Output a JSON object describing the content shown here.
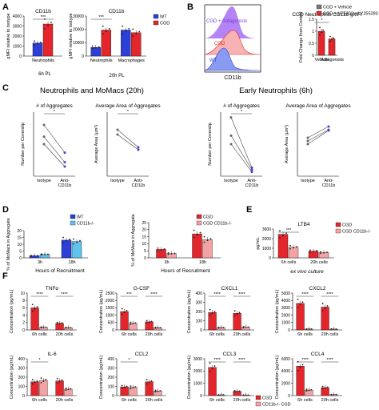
{
  "colors": {
    "red": "#e3262c",
    "blue": "#2c3fd6",
    "lightblue": "#5fc3ec",
    "pink": "#f3a3a3",
    "purple": "#9b59f0",
    "pinkfill": "#f7b3b3",
    "bluefill": "#8a9af0",
    "gray": "#777777",
    "darkred": "#c81e2a"
  },
  "panels": [
    {
      "letter": "A"
    },
    {
      "letter": "B"
    },
    {
      "letter": "C"
    },
    {
      "letter": "D"
    },
    {
      "letter": "E"
    },
    {
      "letter": "F"
    }
  ],
  "legends": {
    "A": [
      {
        "label": "WT",
        "color": "#2c3fd6"
      },
      {
        "label": "CGD",
        "color": "#e3262c"
      }
    ],
    "B": [
      {
        "label": "CGD + Vehicle",
        "color": "#777777"
      },
      {
        "label": "CGD + U75302 + LY255283",
        "color": "#e3262c"
      }
    ],
    "D1": [
      {
        "label": "WT",
        "color": "#2c3fd6"
      },
      {
        "label": "CD11b-/-",
        "color": "#5fc3ec"
      }
    ],
    "D2": [
      {
        "label": "CGD",
        "color": "#e3262c"
      },
      {
        "label": "CGD CD11b-/-",
        "color": "#f3a3a3"
      }
    ],
    "E": [
      {
        "label": "CGD",
        "color": "#e3262c"
      },
      {
        "label": "CGD CD11b-/-",
        "color": "#f3a3a3"
      }
    ],
    "F": [
      {
        "label": "CGD",
        "color": "#e3262c"
      },
      {
        "label": "CD11b-/- CGD",
        "color": "#f3a3a3"
      }
    ]
  },
  "headings": {
    "C_left": "Neutrophils and MoMacs (20h)",
    "C_right": "Early Neutrophils (6h)",
    "B_flow_labels": [
      "CGD + Antagonists",
      "CGD",
      "WT"
    ],
    "B_flow_axis": "CD11b",
    "A_footer_left": "6h PL",
    "A_footer_right": "20h PL",
    "D_footer": "Hours of Recruitment",
    "E_footer": "ex vivo culture"
  },
  "chart_data": [
    {
      "id": "A1",
      "type": "bar",
      "title": "CD11b",
      "ylabel": "gMFI relative to Isotype",
      "ylim": [
        0,
        4000
      ],
      "yticks": [
        0,
        1000,
        2000,
        3000,
        4000
      ],
      "categories": [
        "Neutrophils"
      ],
      "series": [
        {
          "name": "WT",
          "values": [
            1300
          ]
        },
        {
          "name": "CGD",
          "values": [
            3200
          ]
        }
      ],
      "sig": [
        {
          "label": "***"
        }
      ]
    },
    {
      "id": "A2",
      "type": "bar",
      "title": "CD11b",
      "ylabel": "gMFI relative to Isotype",
      "ylim": [
        0,
        30000
      ],
      "yticks": [
        0,
        10000,
        20000,
        30000
      ],
      "categories": [
        "Neutrophils",
        "Macrophages"
      ],
      "series": [
        {
          "name": "WT",
          "values": [
            6500,
            19500
          ]
        },
        {
          "name": "CGD",
          "values": [
            19500,
            17500
          ]
        }
      ],
      "sig": [
        {
          "label": "***"
        }
      ]
    },
    {
      "id": "B",
      "type": "bar",
      "title": "CGD Neutrophils CD11b gMFI",
      "ylabel": "Fold Change from Control",
      "ylim": [
        0,
        1.5
      ],
      "yticks": [
        0.0,
        0.5,
        1.0,
        1.5
      ],
      "categories": [
        "Vehicle",
        "Antagonists"
      ],
      "series": [
        {
          "name": "CGD",
          "values": [
            1.0,
            0.68
          ]
        }
      ],
      "sig": [
        {
          "label": "*"
        }
      ]
    },
    {
      "id": "C1",
      "type": "line",
      "title": "# of Aggregates",
      "ylabel": "Number per Coverslip",
      "categories": [
        "Isotype",
        "Anti-CD11b"
      ],
      "series": [
        {
          "values": [
            48,
            22
          ]
        },
        {
          "values": [
            37,
            13
          ]
        },
        {
          "values": [
            30,
            9
          ]
        }
      ],
      "ylim": [
        0,
        60
      ],
      "sig": [
        {
          "label": "*"
        }
      ]
    },
    {
      "id": "C2",
      "type": "line",
      "title": "Average Area of Aggregates",
      "ylabel": "Average Area (µm²)",
      "categories": [
        "Isotype",
        "Anti-CD11b"
      ],
      "series": [
        {
          "values": [
            58,
            36
          ]
        },
        {
          "values": [
            52,
            33
          ]
        }
      ],
      "ylim": [
        0,
        80
      ],
      "sig": [
        {
          "label": "*"
        }
      ]
    },
    {
      "id": "C3",
      "type": "line",
      "title": "# of Aggregates",
      "ylabel": "Number per Coverslip",
      "categories": [
        "Isotype",
        "Anti-CD11b"
      ],
      "series": [
        {
          "values": [
            55,
            8
          ]
        },
        {
          "values": [
            38,
            6
          ]
        },
        {
          "values": [
            30,
            4
          ]
        }
      ],
      "ylim": [
        0,
        60
      ],
      "sig": [
        {
          "label": "*"
        }
      ]
    },
    {
      "id": "C4",
      "type": "line",
      "title": "Average Area of Aggregates",
      "ylabel": "Average Area (µm²)",
      "categories": [
        "Isotype",
        "Anti-CD11b"
      ],
      "series": [
        {
          "values": [
            48,
            62
          ]
        },
        {
          "values": [
            44,
            58
          ]
        },
        {
          "values": [
            40,
            57
          ]
        }
      ],
      "ylim": [
        0,
        80
      ]
    },
    {
      "id": "D1",
      "type": "bar",
      "ylabel": "% of MoMacs in Aggregate",
      "ylim": [
        0,
        20
      ],
      "yticks": [
        0,
        5,
        10,
        15,
        20
      ],
      "categories": [
        "3h",
        "18h"
      ],
      "series": [
        {
          "name": "WT",
          "values": [
            1.5,
            13
          ]
        },
        {
          "name": "CD11b-/-",
          "values": [
            2.5,
            12
          ]
        }
      ]
    },
    {
      "id": "D2",
      "type": "bar",
      "ylabel": "% of MoMacs in Aggregate",
      "ylim": [
        0,
        25
      ],
      "yticks": [
        0,
        5,
        10,
        15,
        20,
        25
      ],
      "categories": [
        "3h",
        "18h"
      ],
      "series": [
        {
          "name": "CGD",
          "values": [
            6,
            17
          ]
        },
        {
          "name": "CGD CD11b-/-",
          "values": [
            3,
            13
          ]
        }
      ]
    },
    {
      "id": "E",
      "type": "bar",
      "title": "LTB4",
      "ylabel": "pg/mL",
      "ylim": [
        0,
        3000
      ],
      "yticks": [
        0,
        1000,
        2000,
        3000
      ],
      "categories": [
        "6h cells",
        "20h cells"
      ],
      "series": [
        {
          "name": "CGD",
          "values": [
            2450,
            700
          ]
        },
        {
          "name": "CGD CD11b-/-",
          "values": [
            1100,
            550
          ]
        }
      ],
      "sig": [
        {
          "label": "***"
        }
      ]
    },
    {
      "id": "F1",
      "type": "bar",
      "title": "TNFα",
      "ylabel": "Concentration (pg/mL)",
      "ylim": [
        0,
        10
      ],
      "yticks": [
        0,
        2,
        4,
        6,
        8,
        10
      ],
      "categories": [
        "6h cells",
        "20h cells"
      ],
      "series": [
        {
          "name": "CGD",
          "values": [
            6,
            1.8
          ]
        },
        {
          "name": "CD11b-/- CGD",
          "values": [
            0.7,
            0.6
          ]
        }
      ],
      "sig": [
        {
          "label": "****"
        },
        {
          "label": "****"
        }
      ]
    },
    {
      "id": "F2",
      "type": "bar",
      "title": "G-CSF",
      "ylabel": "Concentration (pg/mL)",
      "ylim": [
        0,
        2500
      ],
      "yticks": [
        0,
        500,
        1000,
        1500,
        2000,
        2500
      ],
      "categories": [
        "6h cells",
        "20h cells"
      ],
      "series": [
        {
          "name": "CGD",
          "values": [
            1250,
            550
          ]
        },
        {
          "name": "CD11b-/- CGD",
          "values": [
            450,
            150
          ]
        }
      ],
      "sig": [
        {
          "label": "***"
        },
        {
          "label": "****"
        }
      ]
    },
    {
      "id": "F3",
      "type": "bar",
      "title": "CXCL1",
      "ylabel": "Concentration (pg/mL)",
      "ylim": [
        0,
        400
      ],
      "yticks": [
        0,
        100,
        200,
        300,
        400
      ],
      "categories": [
        "6h cells",
        "20h cells"
      ],
      "series": [
        {
          "name": "CGD",
          "values": [
            190,
            180
          ]
        },
        {
          "name": "CD11b-/- CGD",
          "values": [
            25,
            30
          ]
        }
      ],
      "sig": [
        {
          "label": "****"
        },
        {
          "label": "****"
        }
      ]
    },
    {
      "id": "F4",
      "type": "bar",
      "title": "CXCL2",
      "ylabel": "Concentration (pg/mL)",
      "ylim": [
        0,
        5000
      ],
      "yticks": [
        0,
        1000,
        2000,
        3000,
        4000,
        5000
      ],
      "categories": [
        "6h cells",
        "20h cells"
      ],
      "series": [
        {
          "name": "CGD",
          "values": [
            3600,
            3100
          ]
        },
        {
          "name": "CD11b-/- CGD",
          "values": [
            120,
            110
          ]
        }
      ],
      "sig": [
        {
          "label": "****"
        },
        {
          "label": "****"
        }
      ]
    },
    {
      "id": "F5",
      "type": "bar",
      "title": "IL-6",
      "ylabel": "Concentration (pg/mL)",
      "ylim": [
        0,
        400
      ],
      "yticks": [
        0,
        100,
        200,
        300,
        400
      ],
      "categories": [
        "6h cells",
        "20h cells"
      ],
      "series": [
        {
          "name": "CGD",
          "values": [
            150,
            160
          ]
        },
        {
          "name": "CD11b-/- CGD",
          "values": [
            165,
            70
          ]
        }
      ],
      "sig": [
        {
          "label": "*"
        }
      ]
    },
    {
      "id": "F6",
      "type": "bar",
      "title": "CCL2",
      "ylabel": "Concentration (pg/mL)",
      "ylim": [
        0,
        400
      ],
      "yticks": [
        0,
        100,
        200,
        300,
        400
      ],
      "categories": [
        "6h cells",
        "20h cells"
      ],
      "series": [
        {
          "name": "CGD",
          "values": [
            95,
            150
          ]
        },
        {
          "name": "CD11b-/- CGD",
          "values": [
            90,
            50
          ]
        }
      ],
      "sig": [
        {
          "label": "*"
        }
      ]
    },
    {
      "id": "F7",
      "type": "bar",
      "title": "CCL3",
      "ylabel": "Concentration (pg/mL)",
      "ylim": [
        0,
        3000
      ],
      "yticks": [
        0,
        1000,
        2000,
        3000
      ],
      "categories": [
        "6h cells",
        "20h cells"
      ],
      "series": [
        {
          "name": "CGD",
          "values": [
            2300,
            350
          ]
        },
        {
          "name": "CD11b-/- CGD",
          "values": [
            60,
            40
          ]
        }
      ],
      "sig": [
        {
          "label": "****"
        },
        {
          "label": "****"
        }
      ]
    },
    {
      "id": "F8",
      "type": "bar",
      "title": "CCL4",
      "ylabel": "Concentration (pg/mL)",
      "ylim": [
        0,
        6000
      ],
      "yticks": [
        0,
        2000,
        4000,
        6000
      ],
      "categories": [
        "6h cells",
        "20h cells"
      ],
      "series": [
        {
          "name": "CGD",
          "values": [
            4800,
            1300
          ]
        },
        {
          "name": "CD11b-/- CGD",
          "values": [
            900,
            150
          ]
        }
      ],
      "sig": [
        {
          "label": "****"
        },
        {
          "label": "****"
        }
      ]
    }
  ]
}
